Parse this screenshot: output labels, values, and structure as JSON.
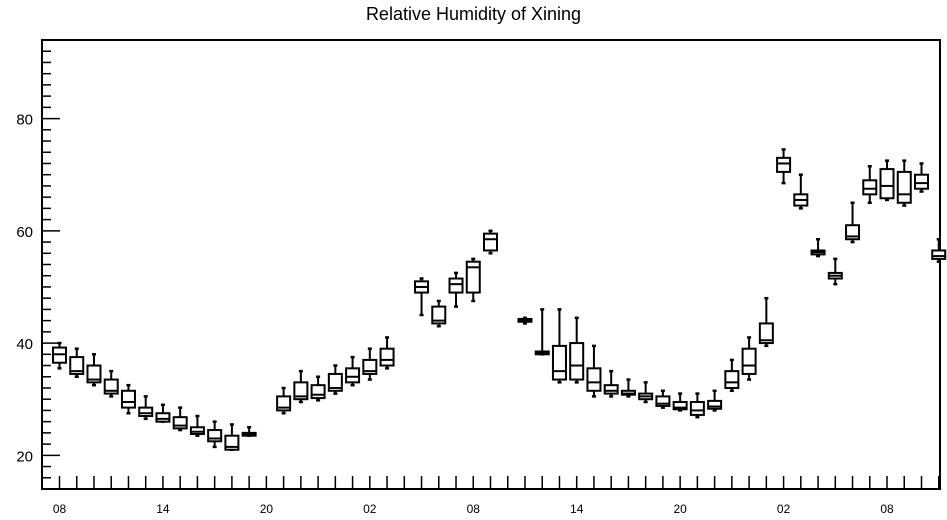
{
  "chart_data": {
    "type": "box",
    "title": "Relative Humidity of Xining",
    "xlabel": "",
    "ylabel": "",
    "ylim": [
      14,
      94
    ],
    "grid": false,
    "legend": "none",
    "y_ticks": [
      20,
      40,
      60,
      80
    ],
    "x_tick_labels": [
      "08",
      "14",
      "20",
      "02",
      "08",
      "14",
      "20",
      "02",
      "08"
    ],
    "boxes": [
      {
        "i": 0,
        "min": 35.5,
        "q1": 36.5,
        "median": 38.0,
        "q3": 39.2,
        "max": 40.0
      },
      {
        "i": 1,
        "min": 34.0,
        "q1": 34.5,
        "median": 35.0,
        "q3": 37.5,
        "max": 39.0
      },
      {
        "i": 2,
        "min": 32.5,
        "q1": 33.0,
        "median": 33.5,
        "q3": 36.0,
        "max": 38.0
      },
      {
        "i": 3,
        "min": 30.5,
        "q1": 31.0,
        "median": 31.5,
        "q3": 33.5,
        "max": 35.0
      },
      {
        "i": 4,
        "min": 27.5,
        "q1": 28.5,
        "median": 29.5,
        "q3": 31.5,
        "max": 32.5
      },
      {
        "i": 5,
        "min": 26.5,
        "q1": 27.0,
        "median": 27.5,
        "q3": 28.5,
        "max": 30.5
      },
      {
        "i": 6,
        "min": 26.0,
        "q1": 26.0,
        "median": 26.5,
        "q3": 27.5,
        "max": 29.0
      },
      {
        "i": 7,
        "min": 24.5,
        "q1": 24.8,
        "median": 25.3,
        "q3": 26.8,
        "max": 28.5
      },
      {
        "i": 8,
        "min": 23.5,
        "q1": 23.8,
        "median": 24.2,
        "q3": 25.0,
        "max": 27.0
      },
      {
        "i": 9,
        "min": 21.5,
        "q1": 22.5,
        "median": 23.0,
        "q3": 24.5,
        "max": 26.0
      },
      {
        "i": 10,
        "min": 21.0,
        "q1": 21.0,
        "median": 21.5,
        "q3": 23.5,
        "max": 25.5
      },
      {
        "i": 11,
        "min": 23.5,
        "q1": 23.5,
        "median": 23.8,
        "q3": 24.0,
        "max": 25.0
      },
      {
        "i": 13,
        "min": 27.5,
        "q1": 28.0,
        "median": 28.5,
        "q3": 30.5,
        "max": 32.0
      },
      {
        "i": 14,
        "min": 29.5,
        "q1": 30.0,
        "median": 30.5,
        "q3": 33.0,
        "max": 35.0
      },
      {
        "i": 15,
        "min": 29.8,
        "q1": 30.2,
        "median": 30.8,
        "q3": 32.5,
        "max": 34.0
      },
      {
        "i": 16,
        "min": 31.0,
        "q1": 31.5,
        "median": 32.0,
        "q3": 34.5,
        "max": 36.0
      },
      {
        "i": 17,
        "min": 32.5,
        "q1": 33.0,
        "median": 34.0,
        "q3": 35.5,
        "max": 37.5
      },
      {
        "i": 18,
        "min": 33.5,
        "q1": 34.5,
        "median": 35.0,
        "q3": 37.0,
        "max": 39.0
      },
      {
        "i": 19,
        "min": 35.5,
        "q1": 36.0,
        "median": 37.0,
        "q3": 39.0,
        "max": 41.0
      },
      {
        "i": 21,
        "min": 45.0,
        "q1": 49.0,
        "median": 50.0,
        "q3": 51.0,
        "max": 51.5
      },
      {
        "i": 22,
        "min": 43.0,
        "q1": 43.5,
        "median": 44.0,
        "q3": 46.5,
        "max": 47.5
      },
      {
        "i": 23,
        "min": 46.5,
        "q1": 49.0,
        "median": 50.5,
        "q3": 51.5,
        "max": 52.5
      },
      {
        "i": 24,
        "min": 47.5,
        "q1": 49.0,
        "median": 53.5,
        "q3": 54.5,
        "max": 55.0
      },
      {
        "i": 25,
        "min": 56.0,
        "q1": 56.5,
        "median": 58.5,
        "q3": 59.5,
        "max": 60.0
      },
      {
        "i": 27,
        "min": 43.5,
        "q1": 43.8,
        "median": 44.0,
        "q3": 44.3,
        "max": 44.5
      },
      {
        "i": 28,
        "min": 38.0,
        "q1": 38.0,
        "median": 38.3,
        "q3": 38.5,
        "max": 46.0
      },
      {
        "i": 29,
        "min": 33.0,
        "q1": 33.5,
        "median": 35.0,
        "q3": 39.5,
        "max": 46.0
      },
      {
        "i": 30,
        "min": 33.0,
        "q1": 33.5,
        "median": 36.0,
        "q3": 40.0,
        "max": 44.5
      },
      {
        "i": 31,
        "min": 30.5,
        "q1": 31.5,
        "median": 33.0,
        "q3": 35.5,
        "max": 39.5
      },
      {
        "i": 32,
        "min": 30.5,
        "q1": 31.0,
        "median": 31.5,
        "q3": 32.5,
        "max": 35.0
      },
      {
        "i": 33,
        "min": 30.5,
        "q1": 30.8,
        "median": 31.0,
        "q3": 31.5,
        "max": 33.5
      },
      {
        "i": 34,
        "min": 29.5,
        "q1": 30.0,
        "median": 30.5,
        "q3": 31.0,
        "max": 33.0
      },
      {
        "i": 35,
        "min": 28.5,
        "q1": 28.8,
        "median": 29.2,
        "q3": 30.5,
        "max": 31.5
      },
      {
        "i": 36,
        "min": 28.0,
        "q1": 28.2,
        "median": 28.5,
        "q3": 29.5,
        "max": 31.0
      },
      {
        "i": 37,
        "min": 26.8,
        "q1": 27.2,
        "median": 28.0,
        "q3": 29.5,
        "max": 31.0
      },
      {
        "i": 38,
        "min": 28.0,
        "q1": 28.3,
        "median": 28.7,
        "q3": 29.7,
        "max": 31.5
      },
      {
        "i": 39,
        "min": 31.5,
        "q1": 32.0,
        "median": 33.0,
        "q3": 35.0,
        "max": 37.0
      },
      {
        "i": 40,
        "min": 33.5,
        "q1": 34.5,
        "median": 36.0,
        "q3": 39.0,
        "max": 41.0
      },
      {
        "i": 41,
        "min": 39.5,
        "q1": 40.0,
        "median": 40.5,
        "q3": 43.5,
        "max": 48.0
      },
      {
        "i": 42,
        "min": 68.5,
        "q1": 70.5,
        "median": 72.0,
        "q3": 73.0,
        "max": 74.5
      },
      {
        "i": 43,
        "min": 64.0,
        "q1": 64.5,
        "median": 65.5,
        "q3": 66.5,
        "max": 70.0
      },
      {
        "i": 44,
        "min": 55.5,
        "q1": 55.8,
        "median": 56.2,
        "q3": 56.5,
        "max": 58.5
      },
      {
        "i": 45,
        "min": 50.5,
        "q1": 51.5,
        "median": 52.0,
        "q3": 52.5,
        "max": 55.0
      },
      {
        "i": 46,
        "min": 58.0,
        "q1": 58.5,
        "median": 59.0,
        "q3": 61.0,
        "max": 65.0
      },
      {
        "i": 47,
        "min": 65.0,
        "q1": 66.5,
        "median": 67.5,
        "q3": 69.0,
        "max": 71.5
      },
      {
        "i": 48,
        "min": 65.5,
        "q1": 65.8,
        "median": 68.0,
        "q3": 71.0,
        "max": 72.5
      },
      {
        "i": 49,
        "min": 64.5,
        "q1": 65.0,
        "median": 66.5,
        "q3": 70.5,
        "max": 72.5
      },
      {
        "i": 50,
        "min": 67.0,
        "q1": 67.5,
        "median": 68.5,
        "q3": 70.0,
        "max": 72.0
      },
      {
        "i": 51,
        "min": 54.5,
        "q1": 55.0,
        "median": 55.5,
        "q3": 56.5,
        "max": 58.5
      }
    ]
  }
}
